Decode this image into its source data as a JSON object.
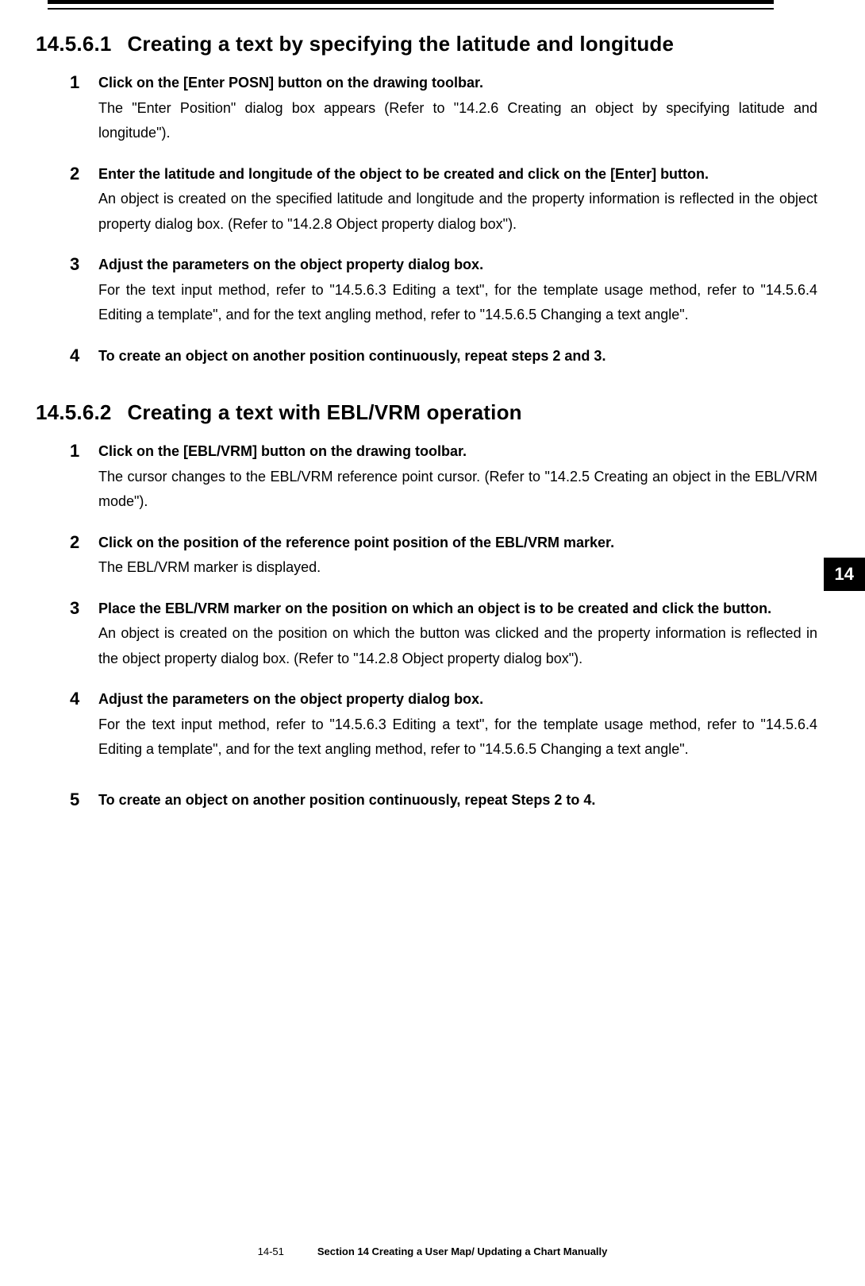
{
  "rules": {
    "thick_color": "#000000",
    "thin_color": "#000000"
  },
  "section1": {
    "number": "14.5.6.1",
    "title": "Creating a text by specifying the latitude and longitude",
    "steps": [
      {
        "n": "1",
        "bold": "Click on the [Enter POSN] button on the drawing toolbar.",
        "desc": "The \"Enter Position\" dialog box appears (Refer to \"14.2.6 Creating an object by specifying latitude and longitude\")."
      },
      {
        "n": "2",
        "bold": "Enter the latitude and longitude of the object to be created and click on the [Enter] button.",
        "desc": "An object is created on the specified latitude and longitude and the property information is reflected in the object property dialog box. (Refer to \"14.2.8 Object property dialog box\")."
      },
      {
        "n": "3",
        "bold": "Adjust the parameters on the object property dialog box.",
        "desc": "For the text input method, refer to \"14.5.6.3 Editing a text\", for the template usage method, refer to \"14.5.6.4 Editing a template\", and for the text angling method, refer to \"14.5.6.5 Changing a text angle\"."
      },
      {
        "n": "4",
        "bold": "To create an object on another position continuously, repeat steps 2 and 3.",
        "desc": ""
      }
    ]
  },
  "section2": {
    "number": "14.5.6.2",
    "title": "Creating a text with EBL/VRM operation",
    "steps": [
      {
        "n": "1",
        "bold": "Click on the [EBL/VRM] button on the drawing toolbar.",
        "desc": "The cursor changes to the EBL/VRM reference point cursor. (Refer to \"14.2.5 Creating an object in the EBL/VRM mode\")."
      },
      {
        "n": "2",
        "bold": "Click on the position of the reference point position of the EBL/VRM marker.",
        "desc": "The EBL/VRM marker is displayed."
      },
      {
        "n": "3",
        "bold": "Place the EBL/VRM marker on the position on which an object is to be created and click the button.",
        "desc": "An object is created on the position on which the button was clicked and the property information is reflected in the object property dialog box. (Refer to \"14.2.8 Object property dialog box\")."
      },
      {
        "n": "4",
        "bold": "Adjust the parameters on the object property dialog box.",
        "desc": "For the text input method, refer to \"14.5.6.3 Editing a text\", for the template usage method, refer to \"14.5.6.4 Editing a template\", and for the text angling method, refer to \"14.5.6.5 Changing a text angle\"."
      },
      {
        "n": "5",
        "bold": "To create an object on another position continuously, repeat Steps 2 to 4.",
        "desc": ""
      }
    ]
  },
  "tab": {
    "label": "14",
    "bg": "#000000",
    "fg": "#ffffff"
  },
  "footer": {
    "page": "14-51",
    "section": "Section 14    Creating a User Map/ Updating a Chart Manually"
  }
}
